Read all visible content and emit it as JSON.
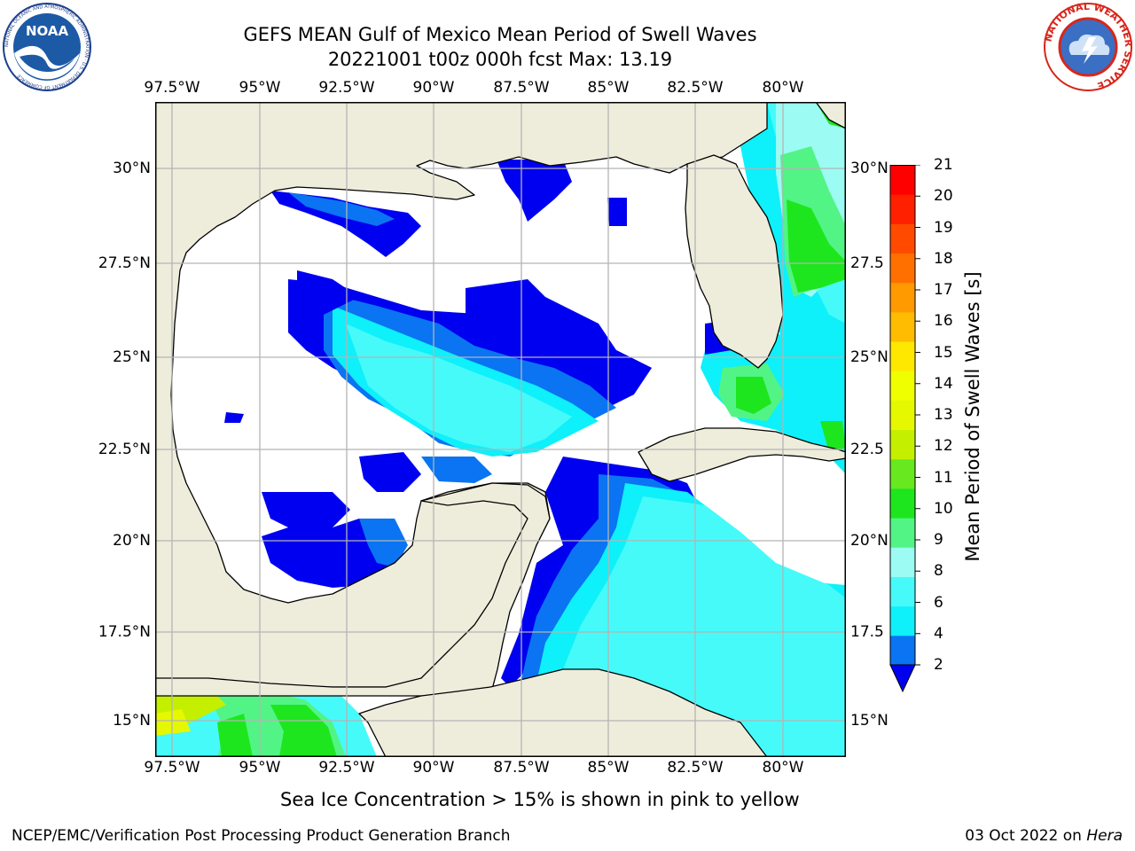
{
  "title_line1": "GEFS MEAN Gulf of Mexico Mean Period of Swell Waves",
  "title_line2": "20221001 t00z 000h fcst   Max: 13.19",
  "lon_ticks": [
    "97.5°W",
    "95°W",
    "92.5°W",
    "90°W",
    "87.5°W",
    "85°W",
    "82.5°W",
    "80°W"
  ],
  "lat_ticks_left": [
    "30°N",
    "27.5°N",
    "25°N",
    "22.5°N",
    "20°N",
    "17.5°N",
    "15°N"
  ],
  "lat_ticks_right": [
    "30°N",
    "27.5",
    "25°N",
    "22.5",
    "20°N",
    "17.5",
    "15°N"
  ],
  "colorbar": {
    "label": "Mean Period of Swell Waves [s]",
    "ticks": [
      "2",
      "4",
      "6",
      "8",
      "9",
      "10",
      "11",
      "12",
      "13",
      "14",
      "15",
      "16",
      "17",
      "18",
      "19",
      "20",
      "21"
    ],
    "levels": [
      {
        "from": "2",
        "to": "4",
        "color": "#0a74f2"
      },
      {
        "from": "4",
        "to": "6",
        "color": "#0ef0fa"
      },
      {
        "from": "6",
        "to": "8",
        "color": "#46fafa"
      },
      {
        "from": "8",
        "to": "9",
        "color": "#9cfcf3"
      },
      {
        "from": "9",
        "to": "10",
        "color": "#52f485"
      },
      {
        "from": "10",
        "to": "11",
        "color": "#1ee61e"
      },
      {
        "from": "11",
        "to": "12",
        "color": "#68e81e"
      },
      {
        "from": "12",
        "to": "13",
        "color": "#c4f000"
      },
      {
        "from": "13",
        "to": "14",
        "color": "#e6f800"
      },
      {
        "from": "14",
        "to": "15",
        "color": "#f0ff00"
      },
      {
        "from": "15",
        "to": "16",
        "color": "#ffe800"
      },
      {
        "from": "16",
        "to": "17",
        "color": "#ffbc00"
      },
      {
        "from": "17",
        "to": "18",
        "color": "#ff9a00"
      },
      {
        "from": "18",
        "to": "19",
        "color": "#ff7000"
      },
      {
        "from": "19",
        "to": "20",
        "color": "#ff4a00"
      },
      {
        "from": "20",
        "to": "21",
        "color": "#ff2000"
      },
      {
        "from": "21",
        "to": "",
        "color": "#ff0000"
      }
    ],
    "under_color": "#0000f0"
  },
  "map": {
    "land_color": "#eeeddc",
    "ocean_nodata_color": "#ffffff",
    "grid_color": "#b4b4b4"
  },
  "logos": {
    "left_text": "NOAA",
    "left_ring_text": "NATIONAL OCEANIC AND ATMOSPHERIC ADMINISTRATION · U.S. DEPARTMENT OF COMMERCE",
    "right_ring_text": "NATIONAL WEATHER SERVICE"
  },
  "note": "Sea Ice Concentration > 15% is shown in pink to yellow",
  "footer_left": "NCEP/EMC/Verification Post Processing Product Generation Branch",
  "footer_right_date": "03 Oct 2022 on ",
  "footer_right_host": "Hera"
}
